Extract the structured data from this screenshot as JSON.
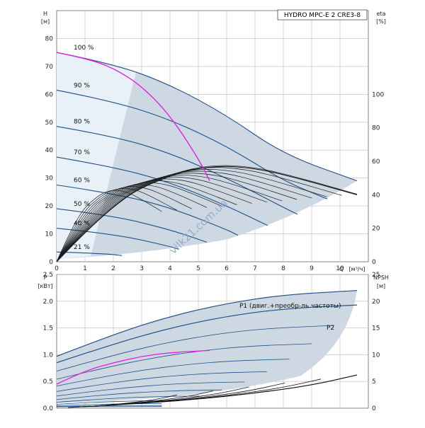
{
  "chart_data": [
    {
      "type": "line",
      "title": "HYDRO MPC-E 2 CRE3-8",
      "xlabel": "Q",
      "xunit": "[м³/ч]",
      "ylabel": "H",
      "yunit": "[м]",
      "y2label": "eta",
      "y2unit": "[%]",
      "xlim": [
        0,
        11
      ],
      "ylim": [
        0,
        90
      ],
      "y2lim": [
        0,
        150
      ],
      "x_ticks": [
        "0",
        "1",
        "2",
        "3",
        "4",
        "5",
        "6",
        "7",
        "8",
        "9",
        "10"
      ],
      "y_ticks": [
        "0",
        "10",
        "20",
        "30",
        "40",
        "50",
        "60",
        "70",
        "80"
      ],
      "y2_ticks": [
        "0",
        "20",
        "40",
        "60",
        "80",
        "100"
      ],
      "grid": true,
      "speed_curves": [
        {
          "label": "100 %",
          "x": [
            0,
            2,
            4,
            6,
            8,
            10.6
          ],
          "y": [
            75,
            71,
            63.5,
            52.5,
            38.5,
            29
          ]
        },
        {
          "label": "90 %",
          "x": [
            0,
            2,
            4,
            6,
            8,
            9.55
          ],
          "y": [
            61.5,
            57.5,
            51,
            41.5,
            29,
            22.5
          ]
        },
        {
          "label": "80 %",
          "x": [
            0,
            2,
            4,
            6,
            8,
            8.5
          ],
          "y": [
            48.5,
            45,
            39,
            30,
            19.5,
            17
          ]
        },
        {
          "label": "70 %",
          "x": [
            0,
            2,
            4,
            6,
            7.45
          ],
          "y": [
            37.5,
            34,
            28.5,
            20,
            13
          ]
        },
        {
          "label": "60 %",
          "x": [
            0,
            2,
            4,
            6,
            6.4
          ],
          "y": [
            27.5,
            24.5,
            19.5,
            11.5,
            9.5
          ]
        },
        {
          "label": "50 %",
          "x": [
            0,
            2,
            4,
            5.3
          ],
          "y": [
            19,
            16.5,
            11.5,
            7
          ]
        },
        {
          "label": "40 %",
          "x": [
            0,
            2,
            4,
            4.3
          ],
          "y": [
            12,
            10,
            5.5,
            4.5
          ]
        },
        {
          "label": "21 %",
          "x": [
            0,
            1,
            2,
            2.3
          ],
          "y": [
            3.5,
            3.2,
            2.6,
            2.2
          ]
        }
      ],
      "efficiency_curve": {
        "x": [
          0,
          2,
          4,
          5.5,
          7,
          8.5,
          10.6
        ],
        "y": [
          0,
          36,
          52,
          57.5,
          56,
          50,
          40
        ]
      },
      "magenta_curve": {
        "x": [
          0,
          1,
          2,
          3,
          4,
          5,
          5.4
        ],
        "y": [
          75,
          73,
          69.5,
          63,
          52.5,
          37,
          29
        ]
      }
    },
    {
      "type": "line",
      "xlabel": "Q",
      "ylabel": "P",
      "yunit": "[кВт]",
      "y2label": "NPSH",
      "y2unit": "[м]",
      "xlim": [
        0,
        11
      ],
      "ylim": [
        0,
        2.5
      ],
      "y2lim": [
        0,
        25
      ],
      "y_ticks": [
        "0.0",
        "0.5",
        "1.0",
        "1.5",
        "2.0",
        "2.5"
      ],
      "y2_ticks": [
        "0",
        "5",
        "10",
        "15",
        "20",
        "25"
      ],
      "grid": true,
      "series": [
        {
          "name": "P1 (двиг.+преобр-ль частоты)",
          "x": [
            0,
            2,
            4,
            6,
            8,
            10.6
          ],
          "y": [
            0.97,
            1.38,
            1.72,
            1.96,
            2.12,
            2.2
          ]
        },
        {
          "name": "P2",
          "x": [
            0,
            2,
            4,
            6,
            8,
            10.6
          ],
          "y": [
            0.85,
            1.2,
            1.5,
            1.72,
            1.86,
            1.93
          ]
        }
      ],
      "npsh_curve": {
        "x": [
          1,
          3,
          5,
          7,
          9,
          10.6
        ],
        "y": [
          0.3,
          0.9,
          1.7,
          2.8,
          4.3,
          6.2
        ]
      }
    }
  ],
  "watermark": "vilk21.com.ua"
}
